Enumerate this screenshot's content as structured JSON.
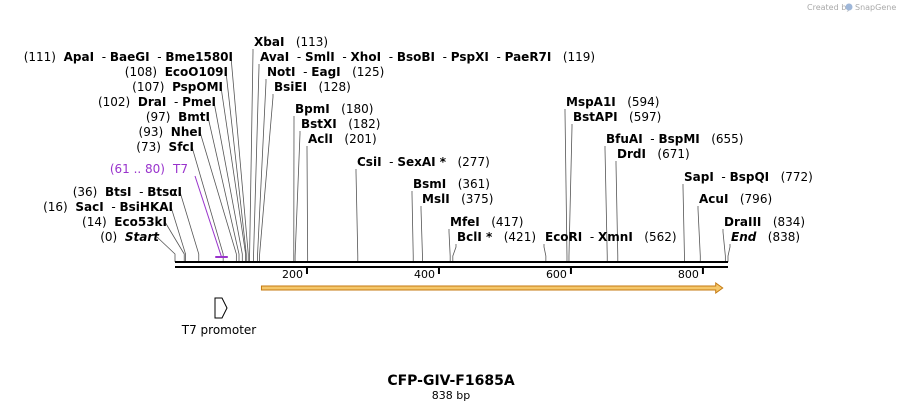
{
  "credit": {
    "text": "Created by",
    "brand": "SnapGene"
  },
  "title": "CFP-GIV-F1685A",
  "length_label": "838 bp",
  "backbone": {
    "total_bp": 838,
    "ticks": [
      "200",
      "400",
      "600",
      "800"
    ],
    "tick_values": [
      200,
      400,
      600,
      800
    ]
  },
  "feature_t7": {
    "label": "T7",
    "range_label": "(61 .. 80)",
    "start": 61,
    "end": 80
  },
  "promoter": {
    "label": "T7 promoter"
  },
  "orf": {
    "start": 131,
    "end": 830
  },
  "left_labels": [
    {
      "pos_label": "(111)",
      "enzymes": [
        "ApaI",
        "BaeGI",
        "Bme1580I"
      ],
      "site": 111
    },
    {
      "pos_label": "(108)",
      "enzymes": [
        "EcoO109I"
      ],
      "site": 108
    },
    {
      "pos_label": "(107)",
      "enzymes": [
        "PspOMI"
      ],
      "site": 107
    },
    {
      "pos_label": "(102)",
      "enzymes": [
        "DraI",
        "PmeI"
      ],
      "site": 102
    },
    {
      "pos_label": "(97)",
      "enzymes": [
        "BmtI"
      ],
      "site": 97
    },
    {
      "pos_label": "(93)",
      "enzymes": [
        "NheI"
      ],
      "site": 93
    },
    {
      "pos_label": "(73)",
      "enzymes": [
        "SfcI"
      ],
      "site": 73
    },
    {
      "pos_label": "(36)",
      "enzymes": [
        "BtsI",
        "BtsαI"
      ],
      "site": 36
    },
    {
      "pos_label": "(16)",
      "enzymes": [
        "SacI",
        "BsiHKAI"
      ],
      "site": 16
    },
    {
      "pos_label": "(14)",
      "enzymes": [
        "Eco53kI"
      ],
      "site": 14
    },
    {
      "pos_label": "(0)",
      "enzymes": [
        "Start"
      ],
      "site": 0,
      "italic": true
    }
  ],
  "right_labels": [
    {
      "enzymes": [
        "XbaI"
      ],
      "pos_label": "(113)",
      "site": 113
    },
    {
      "enzymes": [
        "AvaI",
        "SmlI",
        "XhoI",
        "BsoBI",
        "PspXI",
        "PaeR7I"
      ],
      "pos_label": "(119)",
      "site": 119
    },
    {
      "enzymes": [
        "NotI",
        "EagI"
      ],
      "pos_label": "(125)",
      "site": 125
    },
    {
      "enzymes": [
        "BsiEI"
      ],
      "pos_label": "(128)",
      "site": 128
    },
    {
      "enzymes": [
        "BpmI"
      ],
      "pos_label": "(180)",
      "site": 180
    },
    {
      "enzymes": [
        "BstXI"
      ],
      "pos_label": "(182)",
      "site": 182
    },
    {
      "enzymes": [
        "AclI"
      ],
      "pos_label": "(201)",
      "site": 201
    },
    {
      "enzymes": [
        "CsiI",
        "SexAI *"
      ],
      "pos_label": "(277)",
      "site": 277
    },
    {
      "enzymes": [
        "BsmI"
      ],
      "pos_label": "(361)",
      "site": 361
    },
    {
      "enzymes": [
        "MslI"
      ],
      "pos_label": "(375)",
      "site": 375
    },
    {
      "enzymes": [
        "MfeI"
      ],
      "pos_label": "(417)",
      "site": 417
    },
    {
      "enzymes": [
        "BclI *"
      ],
      "pos_label": "(421)",
      "site": 421
    },
    {
      "enzymes": [
        "EcoRI",
        "XmnI"
      ],
      "pos_label": "(562)",
      "site": 562
    },
    {
      "enzymes": [
        "MspA1I"
      ],
      "pos_label": "(594)",
      "site": 594
    },
    {
      "enzymes": [
        "BstAPI"
      ],
      "pos_label": "(597)",
      "site": 597
    },
    {
      "enzymes": [
        "BfuAI",
        "BspMI"
      ],
      "pos_label": "(655)",
      "site": 655
    },
    {
      "enzymes": [
        "DrdI"
      ],
      "pos_label": "(671)",
      "site": 671
    },
    {
      "enzymes": [
        "SapI",
        "BspQI"
      ],
      "pos_label": "(772)",
      "site": 772
    },
    {
      "enzymes": [
        "AcuI"
      ],
      "pos_label": "(796)",
      "site": 796
    },
    {
      "enzymes": [
        "DraIII"
      ],
      "pos_label": "(834)",
      "site": 834
    },
    {
      "enzymes": [
        "End"
      ],
      "pos_label": "(838)",
      "site": 838,
      "italic": true
    }
  ],
  "colors": {
    "feature": "#9933cc",
    "orf_fill": "#f5c76a",
    "orf_stroke": "#c47a12",
    "backbone": "#000000",
    "credit": "#aaaaaa"
  }
}
